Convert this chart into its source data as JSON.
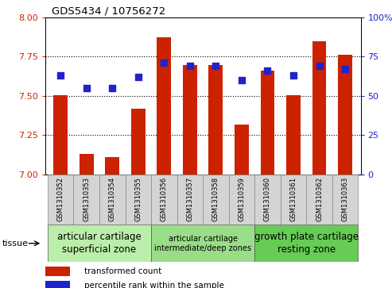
{
  "title": "GDS5434 / 10756272",
  "samples": [
    "GSM1310352",
    "GSM1310353",
    "GSM1310354",
    "GSM1310355",
    "GSM1310356",
    "GSM1310357",
    "GSM1310358",
    "GSM1310359",
    "GSM1310360",
    "GSM1310361",
    "GSM1310362",
    "GSM1310363"
  ],
  "transformed_count": [
    7.502,
    7.13,
    7.11,
    7.42,
    7.875,
    7.695,
    7.695,
    7.315,
    7.66,
    7.505,
    7.845,
    7.76
  ],
  "percentile_rank": [
    63,
    55,
    55,
    62,
    71,
    69,
    69,
    60,
    66,
    63,
    69,
    67
  ],
  "ylim_left": [
    7.0,
    8.0
  ],
  "ylim_right": [
    0,
    100
  ],
  "yticks_left": [
    7.0,
    7.25,
    7.5,
    7.75,
    8.0
  ],
  "yticks_right": [
    0,
    25,
    50,
    75,
    100
  ],
  "bar_color": "#cc2200",
  "dot_color": "#2222cc",
  "groups": [
    {
      "label": "articular cartilage\nsuperficial zone",
      "start": 0,
      "end": 3,
      "color": "#bbeeaa",
      "fontsize": 8.5
    },
    {
      "label": "articular cartilage\nintermediate/deep zones",
      "start": 4,
      "end": 7,
      "color": "#99dd88",
      "fontsize": 7.0
    },
    {
      "label": "growth plate cartilage\nresting zone",
      "start": 8,
      "end": 11,
      "color": "#66cc55",
      "fontsize": 8.5
    }
  ],
  "tissue_label": "tissue",
  "legend_items": [
    {
      "color": "#cc2200",
      "label": "transformed count"
    },
    {
      "color": "#2222cc",
      "label": "percentile rank within the sample"
    }
  ],
  "bar_width": 0.55,
  "dot_size": 28,
  "xlim": [
    -0.6,
    11.6
  ]
}
